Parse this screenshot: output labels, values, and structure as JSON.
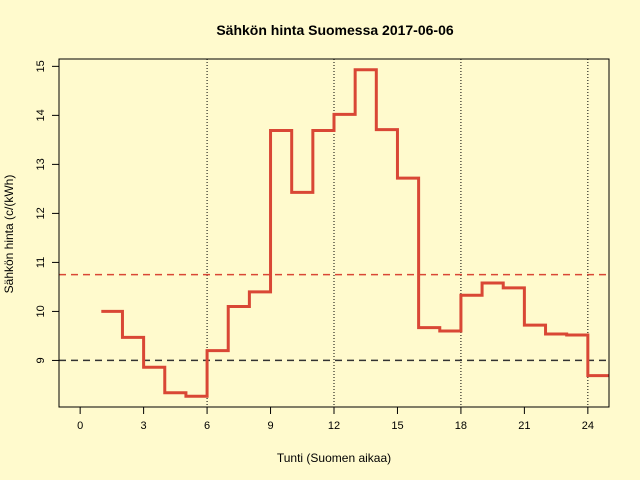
{
  "chart_data": {
    "type": "line",
    "title": "Sähkön hinta Suomessa 2017-06-06",
    "xlabel": "Tunti (Suomen aikaa)",
    "ylabel": "Sähkön hinta (c/(kWh)",
    "xlim": [
      -1,
      25
    ],
    "ylim": [
      8.05,
      15.15
    ],
    "xticks": [
      0,
      3,
      6,
      9,
      12,
      15,
      18,
      21,
      24
    ],
    "yticks": [
      9,
      10,
      11,
      12,
      13,
      14,
      15
    ],
    "vlines": [
      6,
      12,
      18,
      24
    ],
    "hlines": [
      {
        "value": 10.75,
        "color": "#d94735",
        "style": "dashed"
      },
      {
        "value": 9.0,
        "color": "#333333",
        "style": "dashed"
      }
    ],
    "series": [
      {
        "color": "#d94735",
        "step": true,
        "x": [
          1,
          2,
          3,
          4,
          5,
          6,
          7,
          8,
          9,
          10,
          11,
          12,
          13,
          14,
          15,
          16,
          17,
          18,
          19,
          20,
          21,
          22,
          23,
          24
        ],
        "y": [
          10.0,
          9.47,
          8.86,
          8.34,
          8.27,
          9.2,
          10.1,
          10.4,
          13.69,
          12.43,
          13.69,
          14.02,
          14.93,
          13.71,
          12.72,
          9.67,
          9.6,
          10.33,
          10.58,
          10.48,
          9.72,
          9.54,
          9.52,
          8.69
        ]
      }
    ],
    "grid": false
  }
}
